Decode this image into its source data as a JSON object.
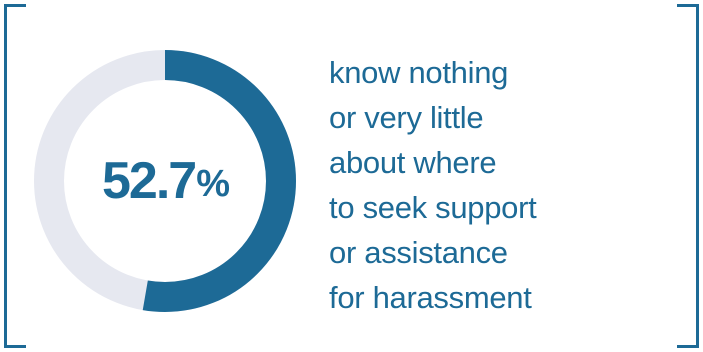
{
  "chart_data": {
    "type": "pie",
    "style": "donut",
    "value_percent": 52.7,
    "value_label": "52.7",
    "value_unit": "%",
    "caption_lines": [
      "know nothing",
      "or very little",
      "about where",
      "to seek support",
      "or assistance",
      "for harassment"
    ]
  },
  "colors": {
    "accent": "#1d6a96",
    "track": "#e6e8f0",
    "background": "#ffffff"
  }
}
